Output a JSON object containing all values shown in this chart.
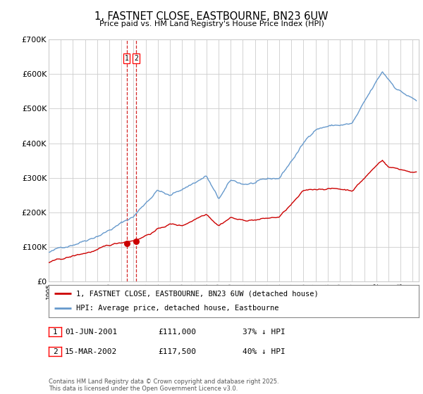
{
  "title": "1, FASTNET CLOSE, EASTBOURNE, BN23 6UW",
  "subtitle": "Price paid vs. HM Land Registry's House Price Index (HPI)",
  "legend_label_red": "1, FASTNET CLOSE, EASTBOURNE, BN23 6UW (detached house)",
  "legend_label_blue": "HPI: Average price, detached house, Eastbourne",
  "footnote": "Contains HM Land Registry data © Crown copyright and database right 2025.\nThis data is licensed under the Open Government Licence v3.0.",
  "annotation1_date": "01-JUN-2001",
  "annotation1_price": "£111,000",
  "annotation1_hpi": "37% ↓ HPI",
  "annotation2_date": "15-MAR-2002",
  "annotation2_price": "£117,500",
  "annotation2_hpi": "40% ↓ HPI",
  "ylim": [
    0,
    700000
  ],
  "xlim": [
    1995,
    2025.5
  ],
  "red_color": "#cc0000",
  "blue_color": "#6699cc",
  "grid_color": "#cccccc",
  "bg_color": "#ffffff",
  "point1_year": 2001.42,
  "point2_year": 2002.21,
  "point1_val": 111000,
  "point2_val": 117500
}
